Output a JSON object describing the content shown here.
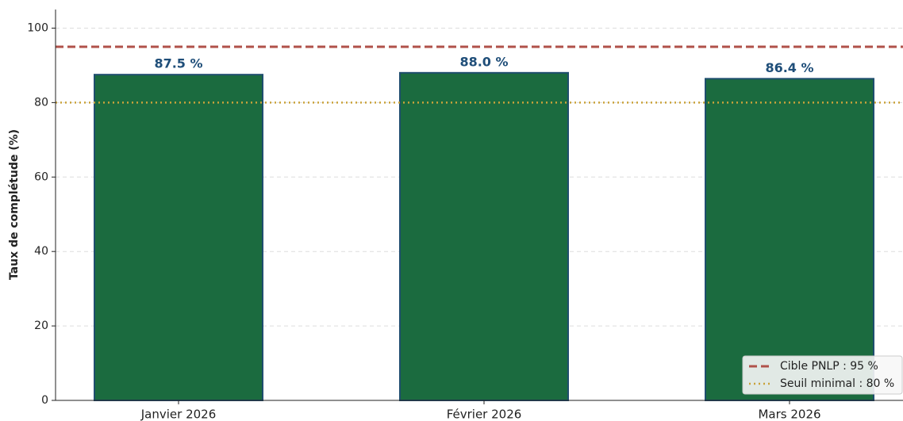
{
  "chart_data": {
    "type": "bar",
    "y_label": "Taux de complétude (%)",
    "categories": [
      "Janvier 2026",
      "Février 2026",
      "Mars 2026"
    ],
    "values": [
      87.5,
      88.0,
      86.4
    ],
    "value_labels": [
      "87.5 %",
      "88.0 %",
      "86.4 %"
    ],
    "color": "#1b6b3f",
    "edge_color": "#1f4e6e",
    "label_color": "#1f4e79",
    "ylim": [
      0,
      105
    ],
    "yticks": [
      0,
      20,
      40,
      60,
      80,
      100
    ],
    "grid": true,
    "reference_lines": [
      {
        "name": "Cible PNLP : 95 %",
        "value": 95,
        "color": "#b0524a",
        "style": "dashed"
      },
      {
        "name": "Seuil minimal : 80 %",
        "value": 80,
        "color": "#c9a23a",
        "style": "dotted"
      }
    ],
    "legend": "lower right"
  }
}
